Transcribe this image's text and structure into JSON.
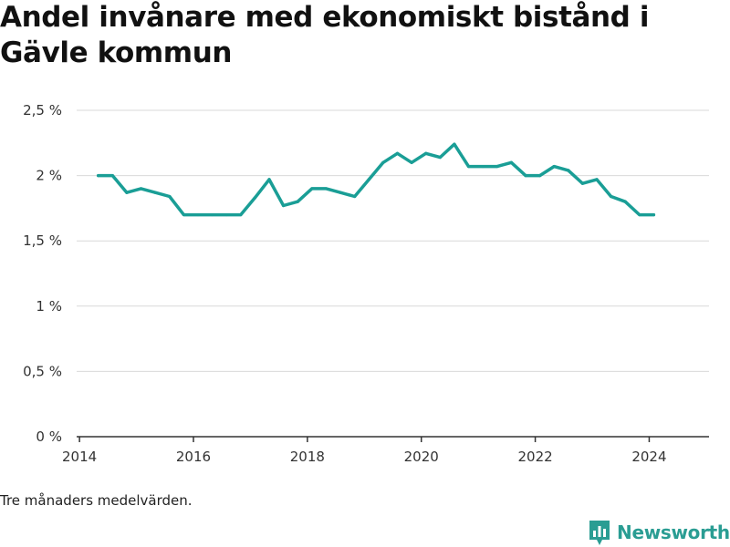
{
  "title": "Andel invånare med ekonomiskt bistånd i Gävle kommun",
  "note": "Tre månaders medelvärden.",
  "brand": {
    "name": "Newsworthy",
    "icon": "newsworthy-logo-icon"
  },
  "colors": {
    "line": "#1a9e96",
    "grid": "#d9d9d9",
    "axis": "#333333",
    "brand": "#2a9d93"
  },
  "chart_data": {
    "type": "line",
    "title": "Andel invånare med ekonomiskt bistånd i Gävle kommun",
    "xlabel": "",
    "ylabel": "",
    "x_range": [
      2013.95,
      2025.05
    ],
    "ylim": [
      0,
      2.5
    ],
    "grid": true,
    "x_ticks": [
      {
        "value": 2014,
        "label": "2014"
      },
      {
        "value": 2016,
        "label": "2016"
      },
      {
        "value": 2018,
        "label": "2018"
      },
      {
        "value": 2020,
        "label": "2020"
      },
      {
        "value": 2022,
        "label": "2022"
      },
      {
        "value": 2024,
        "label": "2024"
      }
    ],
    "y_ticks": [
      {
        "value": 0,
        "label": "0 %"
      },
      {
        "value": 0.5,
        "label": "0,5 %"
      },
      {
        "value": 1,
        "label": "1 %"
      },
      {
        "value": 1.5,
        "label": "1,5 %"
      },
      {
        "value": 2,
        "label": "2 %"
      },
      {
        "value": 2.5,
        "label": "2,5 %"
      }
    ],
    "series": [
      {
        "x": [
          2014.33,
          2014.58,
          2014.83,
          2015.08,
          2015.33,
          2015.58,
          2015.83,
          2016.08,
          2016.33,
          2016.58,
          2016.83,
          2017.08,
          2017.33,
          2017.58,
          2017.83,
          2018.08,
          2018.33,
          2018.58,
          2018.83,
          2019.08,
          2019.33,
          2019.58,
          2019.83,
          2020.08,
          2020.33,
          2020.58,
          2020.83,
          2021.08,
          2021.33,
          2021.58,
          2021.83,
          2022.08,
          2022.33,
          2022.58,
          2022.83,
          2023.08,
          2023.33,
          2023.58,
          2023.83,
          2024.08
        ],
        "values": [
          2.0,
          2.0,
          1.87,
          1.9,
          1.87,
          1.84,
          1.7,
          1.7,
          1.7,
          1.7,
          1.7,
          1.83,
          1.97,
          1.77,
          1.8,
          1.9,
          1.9,
          1.87,
          1.84,
          1.97,
          2.1,
          2.17,
          2.1,
          2.17,
          2.14,
          2.24,
          2.07,
          2.07,
          2.07,
          2.1,
          2.0,
          2.0,
          2.07,
          2.04,
          1.94,
          1.97,
          1.84,
          1.8,
          1.7,
          1.7
        ]
      }
    ]
  }
}
